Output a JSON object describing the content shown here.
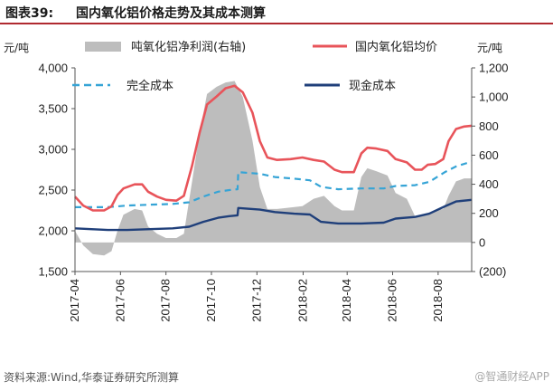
{
  "header": {
    "figure_no": "图表39:",
    "title": "国内氧化铝价格走势及其成本测算"
  },
  "footer": {
    "source": "资料来源:Wind,华泰证券研究所测算",
    "watermark": "@智通财经APP"
  },
  "colors": {
    "price": "#e8545a",
    "cash_cost": "#1f3f7a",
    "full_cost": "#35a4d6",
    "profit": "#bdbdbd",
    "title_rule": "#b02a30"
  },
  "chart_data": {
    "type": "line",
    "left_unit": "元/吨",
    "right_unit": "元/吨",
    "y_left_ticks": [
      "4,000",
      "3,500",
      "3,000",
      "2,500",
      "2,000",
      "1,500"
    ],
    "y_right_ticks": [
      "1,200",
      "1,000",
      "800",
      "600",
      "400",
      "200",
      "0",
      "(200)"
    ],
    "x_ticks": [
      "2017-04",
      "2017-06",
      "2017-08",
      "2017-10",
      "2017-12",
      "2018-02",
      "2018-04",
      "2018-06",
      "2018-08"
    ],
    "x_range": [
      "2017-04-01",
      "2018-09-15"
    ],
    "ylim_left": [
      1500,
      4000
    ],
    "ylim_right": [
      -200,
      1200
    ],
    "legend": {
      "profit": "吨氧化铝净利润(右轴)",
      "price": "国内氧化铝均价",
      "full_cost": "完全成本",
      "cash_cost": "现金成本"
    },
    "series": [
      {
        "key": "price",
        "name": "国内氧化铝均价",
        "axis": "left",
        "points": [
          [
            "2017-04-01",
            2420
          ],
          [
            "2017-04-12",
            2310
          ],
          [
            "2017-04-25",
            2250
          ],
          [
            "2017-05-10",
            2250
          ],
          [
            "2017-05-20",
            2300
          ],
          [
            "2017-05-28",
            2440
          ],
          [
            "2017-06-05",
            2520
          ],
          [
            "2017-06-20",
            2570
          ],
          [
            "2017-06-30",
            2570
          ],
          [
            "2017-07-08",
            2480
          ],
          [
            "2017-07-20",
            2420
          ],
          [
            "2017-08-01",
            2380
          ],
          [
            "2017-08-15",
            2370
          ],
          [
            "2017-08-25",
            2430
          ],
          [
            "2017-09-05",
            2800
          ],
          [
            "2017-09-15",
            3200
          ],
          [
            "2017-09-25",
            3550
          ],
          [
            "2017-10-08",
            3650
          ],
          [
            "2017-10-20",
            3750
          ],
          [
            "2017-11-01",
            3780
          ],
          [
            "2017-11-12",
            3700
          ],
          [
            "2017-11-25",
            3450
          ],
          [
            "2017-12-05",
            3100
          ],
          [
            "2017-12-15",
            2900
          ],
          [
            "2017-12-28",
            2870
          ],
          [
            "2018-01-15",
            2880
          ],
          [
            "2018-01-31",
            2900
          ],
          [
            "2018-02-15",
            2870
          ],
          [
            "2018-03-01",
            2850
          ],
          [
            "2018-03-15",
            2750
          ],
          [
            "2018-03-25",
            2720
          ],
          [
            "2018-04-10",
            2720
          ],
          [
            "2018-04-20",
            2950
          ],
          [
            "2018-04-28",
            3020
          ],
          [
            "2018-05-10",
            3010
          ],
          [
            "2018-05-25",
            2980
          ],
          [
            "2018-06-05",
            2880
          ],
          [
            "2018-06-20",
            2840
          ],
          [
            "2018-07-01",
            2750
          ],
          [
            "2018-07-10",
            2750
          ],
          [
            "2018-07-18",
            2810
          ],
          [
            "2018-07-28",
            2820
          ],
          [
            "2018-08-08",
            2880
          ],
          [
            "2018-08-15",
            3100
          ],
          [
            "2018-08-25",
            3250
          ],
          [
            "2018-09-05",
            3280
          ],
          [
            "2018-09-15",
            3290
          ]
        ]
      },
      {
        "key": "full_cost",
        "name": "完全成本",
        "axis": "left",
        "points": [
          [
            "2017-04-01",
            2290
          ],
          [
            "2017-05-15",
            2290
          ],
          [
            "2017-06-10",
            2310
          ],
          [
            "2017-07-10",
            2320
          ],
          [
            "2017-08-10",
            2330
          ],
          [
            "2017-09-01",
            2350
          ],
          [
            "2017-09-20",
            2420
          ],
          [
            "2017-10-10",
            2480
          ],
          [
            "2017-10-25",
            2500
          ],
          [
            "2017-11-05",
            2510
          ],
          [
            "2017-11-06",
            2720
          ],
          [
            "2017-12-05",
            2700
          ],
          [
            "2017-12-25",
            2660
          ],
          [
            "2018-01-20",
            2640
          ],
          [
            "2018-02-10",
            2620
          ],
          [
            "2018-02-25",
            2540
          ],
          [
            "2018-03-20",
            2510
          ],
          [
            "2018-04-20",
            2520
          ],
          [
            "2018-05-20",
            2520
          ],
          [
            "2018-06-05",
            2550
          ],
          [
            "2018-07-01",
            2560
          ],
          [
            "2018-07-20",
            2600
          ],
          [
            "2018-08-10",
            2720
          ],
          [
            "2018-08-25",
            2790
          ],
          [
            "2018-09-15",
            2850
          ]
        ]
      },
      {
        "key": "cash_cost",
        "name": "现金成本",
        "axis": "left",
        "points": [
          [
            "2017-04-01",
            2030
          ],
          [
            "2017-05-15",
            2010
          ],
          [
            "2017-06-10",
            2010
          ],
          [
            "2017-07-10",
            2020
          ],
          [
            "2017-08-10",
            2030
          ],
          [
            "2017-09-01",
            2050
          ],
          [
            "2017-09-20",
            2110
          ],
          [
            "2017-10-10",
            2160
          ],
          [
            "2017-10-25",
            2180
          ],
          [
            "2017-11-05",
            2190
          ],
          [
            "2017-11-06",
            2280
          ],
          [
            "2017-12-05",
            2260
          ],
          [
            "2017-12-25",
            2230
          ],
          [
            "2018-01-20",
            2210
          ],
          [
            "2018-02-10",
            2200
          ],
          [
            "2018-02-25",
            2110
          ],
          [
            "2018-03-20",
            2090
          ],
          [
            "2018-04-20",
            2090
          ],
          [
            "2018-05-20",
            2100
          ],
          [
            "2018-06-05",
            2150
          ],
          [
            "2018-07-01",
            2170
          ],
          [
            "2018-07-20",
            2210
          ],
          [
            "2018-08-10",
            2300
          ],
          [
            "2018-08-25",
            2360
          ],
          [
            "2018-09-15",
            2380
          ]
        ]
      },
      {
        "key": "profit",
        "name": "吨氧化铝净利润(右轴)",
        "axis": "right",
        "type": "area",
        "points": [
          [
            "2017-04-01",
            80
          ],
          [
            "2017-04-12",
            -20
          ],
          [
            "2017-04-25",
            -80
          ],
          [
            "2017-05-10",
            -90
          ],
          [
            "2017-05-20",
            -60
          ],
          [
            "2017-05-28",
            80
          ],
          [
            "2017-06-05",
            190
          ],
          [
            "2017-06-20",
            230
          ],
          [
            "2017-06-30",
            220
          ],
          [
            "2017-07-08",
            110
          ],
          [
            "2017-07-20",
            60
          ],
          [
            "2017-08-01",
            30
          ],
          [
            "2017-08-15",
            30
          ],
          [
            "2017-08-25",
            60
          ],
          [
            "2017-09-05",
            420
          ],
          [
            "2017-09-15",
            750
          ],
          [
            "2017-09-25",
            1020
          ],
          [
            "2017-10-08",
            1070
          ],
          [
            "2017-10-20",
            1100
          ],
          [
            "2017-11-01",
            1110
          ],
          [
            "2017-11-12",
            1000
          ],
          [
            "2017-11-25",
            700
          ],
          [
            "2017-12-05",
            380
          ],
          [
            "2017-12-15",
            230
          ],
          [
            "2017-12-28",
            230
          ],
          [
            "2018-01-15",
            240
          ],
          [
            "2018-01-31",
            250
          ],
          [
            "2018-02-15",
            300
          ],
          [
            "2018-03-01",
            320
          ],
          [
            "2018-03-15",
            250
          ],
          [
            "2018-03-25",
            220
          ],
          [
            "2018-04-10",
            220
          ],
          [
            "2018-04-20",
            450
          ],
          [
            "2018-04-28",
            510
          ],
          [
            "2018-05-10",
            490
          ],
          [
            "2018-05-25",
            460
          ],
          [
            "2018-06-05",
            340
          ],
          [
            "2018-06-20",
            300
          ],
          [
            "2018-07-01",
            180
          ],
          [
            "2018-07-10",
            180
          ],
          [
            "2018-07-18",
            200
          ],
          [
            "2018-07-28",
            220
          ],
          [
            "2018-08-08",
            230
          ],
          [
            "2018-08-15",
            320
          ],
          [
            "2018-08-25",
            420
          ],
          [
            "2018-09-05",
            440
          ],
          [
            "2018-09-15",
            440
          ]
        ]
      }
    ]
  }
}
